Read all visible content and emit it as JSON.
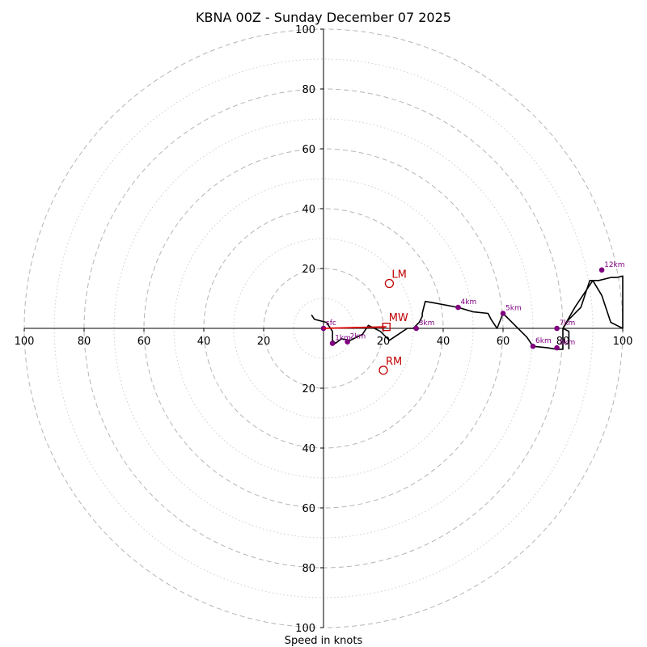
{
  "chart_data": {
    "type": "line",
    "subtype": "hodograph",
    "title": "KBNA 00Z - Sunday December 07 2025",
    "xlabel": "Speed in knots",
    "axis_range": [
      -100,
      100
    ],
    "major_rings": [
      20,
      40,
      60,
      80,
      100
    ],
    "minor_rings": [
      10,
      30,
      50,
      70,
      90
    ],
    "x_ticks": [
      {
        "value": -100,
        "label": "100"
      },
      {
        "value": -80,
        "label": "80"
      },
      {
        "value": -60,
        "label": "60"
      },
      {
        "value": -40,
        "label": "40"
      },
      {
        "value": -20,
        "label": "20"
      },
      {
        "value": 20,
        "label": "20"
      },
      {
        "value": 40,
        "label": "40"
      },
      {
        "value": 60,
        "label": "60"
      },
      {
        "value": 80,
        "label": "80"
      },
      {
        "value": 100,
        "label": "100"
      }
    ],
    "y_ticks": [
      {
        "value": 100,
        "label": "100"
      },
      {
        "value": 80,
        "label": "80"
      },
      {
        "value": 60,
        "label": "60"
      },
      {
        "value": 40,
        "label": "40"
      },
      {
        "value": 20,
        "label": "20"
      },
      {
        "value": -20,
        "label": "20"
      },
      {
        "value": -40,
        "label": "40"
      },
      {
        "value": -60,
        "label": "60"
      },
      {
        "value": -80,
        "label": "80"
      },
      {
        "value": -100,
        "label": "100"
      }
    ],
    "hodograph": {
      "u": [
        -4,
        -3,
        1,
        3,
        3,
        4,
        6,
        9,
        13,
        15,
        19,
        22,
        25,
        28,
        30,
        32,
        33,
        33,
        34,
        34,
        37,
        45,
        50,
        55,
        56,
        58,
        60,
        64,
        68,
        70,
        75,
        78,
        80,
        80,
        82,
        86,
        89,
        92,
        96,
        98,
        100,
        100,
        96,
        93,
        90,
        84,
        80,
        82,
        82
      ],
      "v": [
        4.5,
        3,
        2,
        -1,
        -4,
        -5,
        -3.5,
        -4,
        -2,
        1,
        -1,
        -4,
        -2,
        0,
        0,
        2,
        4,
        5,
        9,
        9,
        8.5,
        7,
        5.5,
        5,
        3,
        0,
        5,
        1,
        -3,
        -6,
        -6.5,
        -7,
        -7,
        0,
        3,
        7,
        16,
        16,
        17,
        17,
        17.5,
        0,
        2,
        11,
        16,
        7,
        0,
        -1,
        -7
      ]
    },
    "height_markers": [
      {
        "label": "sfc",
        "u": 0,
        "v": 0
      },
      {
        "label": "1km",
        "u": 3,
        "v": -5
      },
      {
        "label": "2km",
        "u": 8,
        "v": -4.5
      },
      {
        "label": "3km",
        "u": 31,
        "v": 0
      },
      {
        "label": "4km",
        "u": 45,
        "v": 7
      },
      {
        "label": "5km",
        "u": 60,
        "v": 5
      },
      {
        "label": "6km",
        "u": 70,
        "v": -6
      },
      {
        "label": "7km",
        "u": 78,
        "v": 0
      },
      {
        "label": "8km",
        "u": 78,
        "v": -6.5
      },
      {
        "label": "12km",
        "u": 93,
        "v": 19.5
      }
    ],
    "storm_motion": [
      {
        "label": "LM",
        "u": 22,
        "v": 15,
        "marker": "circle"
      },
      {
        "label": "RM",
        "u": 20,
        "v": -14,
        "marker": "circle"
      },
      {
        "label": "MW",
        "u": 21,
        "v": 0.5,
        "marker": "square"
      }
    ],
    "shear_vector": {
      "from": "sfc",
      "to": "MW"
    },
    "colors": {
      "hodograph": "#000000",
      "markers": "#800080",
      "storm_motion": "#c00000",
      "shear": "#e00000"
    }
  }
}
